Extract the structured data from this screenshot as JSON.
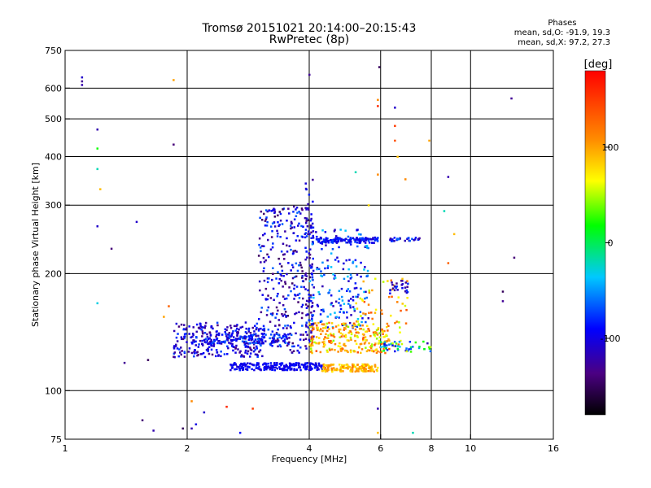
{
  "header": {
    "title": "Tromsø 20151021 20:14:00–20:15:43",
    "subtitle": "RwPretec (8p)"
  },
  "phase_stats": {
    "heading": "Phases",
    "line_o": "mean, sd,O: -91.9, 19.3",
    "line_x": "mean, sd,X:  97.2, 27.3"
  },
  "colorbar": {
    "label": "[deg]",
    "ticks": [
      {
        "value": 100,
        "label": "100"
      },
      {
        "value": 0,
        "label": "0"
      },
      {
        "value": -100,
        "label": "-100"
      }
    ],
    "range": [
      -180,
      180
    ]
  },
  "chart_data": {
    "type": "scatter",
    "xlabel": "Frequency [MHz]",
    "ylabel": "Stationary phase Virtual Height [km]",
    "x_scale": "log",
    "y_scale": "log",
    "xlim": [
      1,
      16
    ],
    "ylim": [
      75,
      750
    ],
    "x_ticks": [
      1,
      2,
      4,
      6,
      8,
      10,
      16
    ],
    "x_gridlines": [
      2,
      4,
      6,
      8,
      10
    ],
    "y_ticks": [
      75,
      100,
      200,
      300,
      400,
      500,
      600,
      750
    ],
    "y_gridlines": [
      100,
      200,
      300,
      400,
      500,
      600
    ],
    "color_metric": "phase [deg]",
    "clusters": [
      {
        "fx": [
          1.85,
          3.1
        ],
        "fy": [
          122,
          150
        ],
        "px": [
          -140,
          -70
        ],
        "n": 280
      },
      {
        "fx": [
          2.2,
          3.6
        ],
        "fy": [
          130,
          140
        ],
        "px": [
          -120,
          -60
        ],
        "n": 120
      },
      {
        "fx": [
          2.55,
          4.3
        ],
        "fy": [
          113,
          118
        ],
        "px": [
          -110,
          -80
        ],
        "n": 220
      },
      {
        "fx": [
          4.3,
          5.9
        ],
        "fy": [
          112,
          117
        ],
        "px": [
          70,
          120
        ],
        "n": 140
      },
      {
        "fx": [
          3.0,
          4.1
        ],
        "fy": [
          125,
          300
        ],
        "px": [
          -150,
          -60
        ],
        "n": 320
      },
      {
        "fx": [
          3.9,
          4.1
        ],
        "fy": [
          130,
          350
        ],
        "px": [
          -140,
          -80
        ],
        "n": 60
      },
      {
        "fx": [
          4.0,
          5.6
        ],
        "fy": [
          145,
          260
        ],
        "px": [
          -120,
          -30
        ],
        "n": 180
      },
      {
        "fx": [
          4.2,
          5.9
        ],
        "fy": [
          240,
          248
        ],
        "px": [
          -110,
          -70
        ],
        "n": 120
      },
      {
        "fx": [
          4.0,
          6.3
        ],
        "fy": [
          125,
          150
        ],
        "px": [
          40,
          140
        ],
        "n": 240
      },
      {
        "fx": [
          5.2,
          7.0
        ],
        "fy": [
          130,
          200
        ],
        "px": [
          50,
          140
        ],
        "n": 60
      },
      {
        "fx": [
          6.3,
          7.5
        ],
        "fy": [
          242,
          248
        ],
        "px": [
          -130,
          -60
        ],
        "n": 30
      },
      {
        "fx": [
          6.3,
          7.0
        ],
        "fy": [
          178,
          192
        ],
        "px": [
          -140,
          -70
        ],
        "n": 25
      },
      {
        "fx": [
          6.0,
          8.0
        ],
        "fy": [
          126,
          134
        ],
        "px": [
          -120,
          60
        ],
        "n": 50
      }
    ],
    "points": [
      {
        "f": 1.1,
        "h": 640,
        "p": -110
      },
      {
        "f": 1.1,
        "h": 625,
        "p": -130
      },
      {
        "f": 1.1,
        "h": 612,
        "p": -120
      },
      {
        "f": 1.2,
        "h": 470,
        "p": -120
      },
      {
        "f": 1.2,
        "h": 420,
        "p": 20
      },
      {
        "f": 1.2,
        "h": 372,
        "p": -20
      },
      {
        "f": 1.22,
        "h": 330,
        "p": 90
      },
      {
        "f": 1.2,
        "h": 265,
        "p": -110
      },
      {
        "f": 1.3,
        "h": 232,
        "p": -140
      },
      {
        "f": 1.5,
        "h": 272,
        "p": -110
      },
      {
        "f": 1.2,
        "h": 168,
        "p": -30
      },
      {
        "f": 1.4,
        "h": 118,
        "p": -130
      },
      {
        "f": 1.55,
        "h": 84,
        "p": -140
      },
      {
        "f": 1.65,
        "h": 79,
        "p": -120
      },
      {
        "f": 1.6,
        "h": 120,
        "p": -150
      },
      {
        "f": 1.85,
        "h": 430,
        "p": -140
      },
      {
        "f": 1.85,
        "h": 630,
        "p": 100
      },
      {
        "f": 1.8,
        "h": 165,
        "p": 130
      },
      {
        "f": 1.75,
        "h": 155,
        "p": 100
      },
      {
        "f": 1.95,
        "h": 80,
        "p": -150
      },
      {
        "f": 2.05,
        "h": 80,
        "p": -120
      },
      {
        "f": 2.1,
        "h": 82,
        "p": -100
      },
      {
        "f": 2.2,
        "h": 88,
        "p": -110
      },
      {
        "f": 2.5,
        "h": 91,
        "p": 160
      },
      {
        "f": 2.7,
        "h": 78,
        "p": -90
      },
      {
        "f": 2.9,
        "h": 90,
        "p": 150
      },
      {
        "f": 2.05,
        "h": 94,
        "p": 110
      },
      {
        "f": 4.0,
        "h": 650,
        "p": -130
      },
      {
        "f": 5.95,
        "h": 680,
        "p": -150
      },
      {
        "f": 5.9,
        "h": 560,
        "p": 110
      },
      {
        "f": 5.9,
        "h": 540,
        "p": 160
      },
      {
        "f": 6.5,
        "h": 535,
        "p": -110
      },
      {
        "f": 6.5,
        "h": 480,
        "p": 150
      },
      {
        "f": 6.5,
        "h": 440,
        "p": 140
      },
      {
        "f": 6.6,
        "h": 400,
        "p": 90
      },
      {
        "f": 6.9,
        "h": 350,
        "p": 110
      },
      {
        "f": 7.9,
        "h": 440,
        "p": 100
      },
      {
        "f": 8.8,
        "h": 355,
        "p": -120
      },
      {
        "f": 8.6,
        "h": 290,
        "p": -20
      },
      {
        "f": 9.1,
        "h": 253,
        "p": 90
      },
      {
        "f": 8.8,
        "h": 213,
        "p": 130
      },
      {
        "f": 12.6,
        "h": 565,
        "p": -130
      },
      {
        "f": 12.8,
        "h": 220,
        "p": -140
      },
      {
        "f": 12.0,
        "h": 180,
        "p": -150
      },
      {
        "f": 12.0,
        "h": 170,
        "p": -130
      },
      {
        "f": 5.9,
        "h": 90,
        "p": -120
      },
      {
        "f": 5.9,
        "h": 78,
        "p": 90
      },
      {
        "f": 7.2,
        "h": 78,
        "p": -20
      },
      {
        "f": 5.9,
        "h": 360,
        "p": 110
      },
      {
        "f": 5.6,
        "h": 300,
        "p": 80
      },
      {
        "f": 5.2,
        "h": 365,
        "p": -20
      }
    ]
  }
}
